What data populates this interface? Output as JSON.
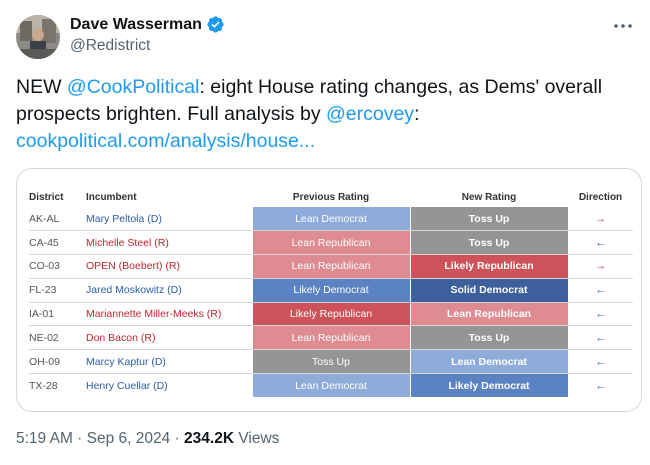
{
  "author": {
    "name": "Dave Wasserman",
    "handle": "@Redistrict",
    "verified": true
  },
  "tweet": {
    "text_parts": [
      {
        "type": "text",
        "value": "NEW "
      },
      {
        "type": "link",
        "value": "@CookPolitical"
      },
      {
        "type": "text",
        "value": ": eight House rating changes, as Dems' overall prospects brighten. Full analysis by "
      },
      {
        "type": "link",
        "value": "@ercovey"
      },
      {
        "type": "text",
        "value": ":"
      },
      {
        "type": "break"
      },
      {
        "type": "link",
        "value": "cookpolitical.com/analysis/house..."
      }
    ]
  },
  "table": {
    "headers": {
      "district": "District",
      "incumbent": "Incumbent",
      "previous": "Previous Rating",
      "new": "New Rating",
      "direction": "Direction"
    },
    "rating_colors": {
      "Solid Democrat": "#3d5f9c",
      "Likely Democrat": "#5b82c2",
      "Lean Democrat": "#8eabda",
      "Toss Up": "#959595",
      "Lean Republican": "#de8b92",
      "Likely Republican": "#ce5259"
    },
    "direction_colors": {
      "right": "#d0343c",
      "left": "#2c5da8"
    },
    "rows": [
      {
        "district": "AK-AL",
        "incumbent": "Mary Peltola (D)",
        "party": "D",
        "previous": "Lean Democrat",
        "new": "Toss Up",
        "direction": "right",
        "arrow": "→"
      },
      {
        "district": "CA-45",
        "incumbent": "Michelle Steel (R)",
        "party": "R",
        "previous": "Lean Republican",
        "new": "Toss Up",
        "direction": "left",
        "arrow": "←"
      },
      {
        "district": "CO-03",
        "incumbent": "OPEN (Boebert) (R)",
        "party": "R",
        "previous": "Lean Republican",
        "new": "Likely Republican",
        "direction": "right",
        "arrow": "→"
      },
      {
        "district": "FL-23",
        "incumbent": "Jared Moskowitz (D)",
        "party": "D",
        "previous": "Likely Democrat",
        "new": "Solid Democrat",
        "direction": "left",
        "arrow": "←"
      },
      {
        "district": "IA-01",
        "incumbent": "Mariannette Miller-Meeks (R)",
        "party": "R",
        "previous": "Likely Republican",
        "new": "Lean Republican",
        "direction": "left",
        "arrow": "←"
      },
      {
        "district": "NE-02",
        "incumbent": "Don Bacon (R)",
        "party": "R",
        "previous": "Lean Republican",
        "new": "Toss Up",
        "direction": "left",
        "arrow": "←"
      },
      {
        "district": "OH-09",
        "incumbent": "Marcy Kaptur (D)",
        "party": "D",
        "previous": "Toss Up",
        "new": "Lean Democrat",
        "direction": "left",
        "arrow": "←"
      },
      {
        "district": "TX-28",
        "incumbent": "Henry Cuellar (D)",
        "party": "D",
        "previous": "Lean Democrat",
        "new": "Likely Democrat",
        "direction": "left",
        "arrow": "←"
      }
    ]
  },
  "footer": {
    "time": "5:19 AM",
    "sep1": " · ",
    "date": "Sep 6, 2024",
    "sep2": " · ",
    "views": "234.2K",
    "views_label": " Views"
  }
}
